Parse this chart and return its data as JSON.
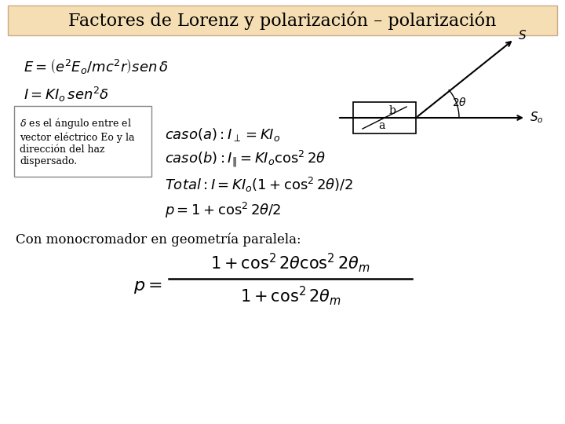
{
  "title": "Factores de Lorenz y polarización – polarización",
  "title_bg": "#f5deb3",
  "bg_color": "#ffffff",
  "title_fontsize": 16,
  "eq1": "$E = \\left(e^2E_o/mc^2r\\right)sen\\,\\delta$",
  "eq2": "$I = KI_o\\,sen^2\\delta$",
  "delta_box_text": "$\\delta$ es el ángulo entre el\nvector eléctrico Eo y la\ndirección del haz\ndispersado.",
  "caso_a": "$caso(a): I_{\\perp} = KI_o$",
  "caso_b": "$caso(b): I_{\\|} = KI_o\\cos^2 2\\theta$",
  "total": "$Total: I = KI_o\\left(1+\\cos^2 2\\theta\\right)/2$",
  "p_eq": "$p = 1 + \\cos^2 2\\theta/2$",
  "mono_text": "Con monocromador en geometría paralela:",
  "p_frac_num": "$1 + \\cos^2 2\\theta\\cos^2 2\\theta_m$",
  "p_frac_den": "$1 + \\cos^2 2\\theta_m$",
  "p_label": "$p =$"
}
